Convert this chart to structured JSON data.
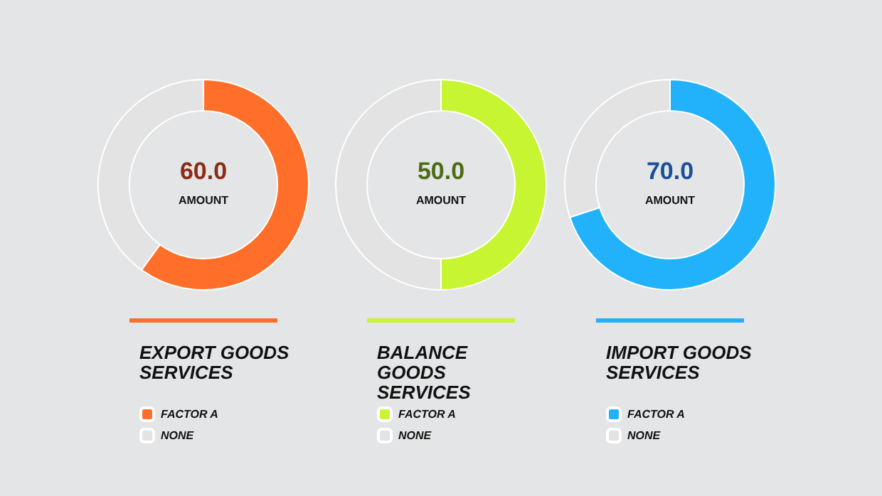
{
  "chart_data": [
    {
      "type": "donut",
      "title": "EXPORT GOODS SERVICES",
      "categories": [
        "FACTOR A",
        "NONE"
      ],
      "values": [
        60,
        40
      ],
      "colors": [
        "#ff6f2a",
        "#e3e3e3"
      ],
      "annotations": [
        "60.0",
        "AMOUNT"
      ],
      "legend": "bottom"
    },
    {
      "type": "donut",
      "title": "BALANCE GOODS SERVICES",
      "categories": [
        "FACTOR A",
        "NONE"
      ],
      "values": [
        50,
        50
      ],
      "colors": [
        "#c8f532",
        "#e3e3e3"
      ],
      "annotations": [
        "50.0",
        "AMOUNT"
      ],
      "legend": "bottom"
    },
    {
      "type": "donut",
      "title": "IMPORT GOODS SERVICES",
      "categories": [
        "FACTOR A",
        "NONE"
      ],
      "values": [
        70,
        30
      ],
      "colors": [
        "#22b2fb",
        "#e3e3e3"
      ],
      "annotations": [
        "70.0",
        "AMOUNT"
      ],
      "legend": "bottom"
    }
  ]
}
